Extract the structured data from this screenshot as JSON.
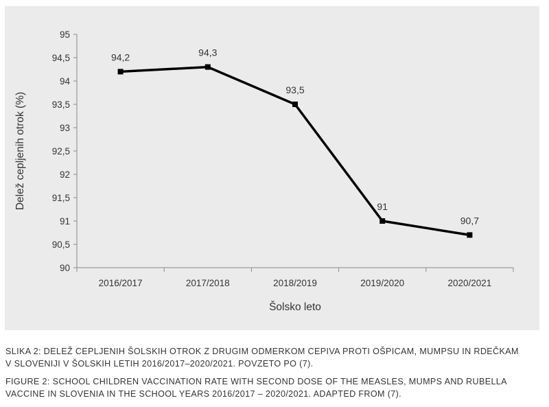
{
  "colors": {
    "panel_background": "#ebebeb",
    "line": "#000000",
    "axis": "#8a8a8a",
    "text": "#333333"
  },
  "chart_data": {
    "type": "line",
    "title": "",
    "xlabel": "Šolsko leto",
    "ylabel": "Delež cepljenih otrok (%)",
    "categories": [
      "2016/2017",
      "2017/2018",
      "2018/2019",
      "2019/2020",
      "2020/2021"
    ],
    "values": [
      94.2,
      94.3,
      93.5,
      91.0,
      90.7
    ],
    "data_labels": [
      "94,2",
      "94,3",
      "93,5",
      "91",
      "90,7"
    ],
    "ylim": [
      90,
      95
    ],
    "yticks": [
      "90",
      "90,5",
      "91",
      "91,5",
      "92",
      "92,5",
      "93",
      "93,5",
      "94",
      "94,5",
      "95"
    ],
    "grid": false,
    "legend": "none",
    "marker": "square"
  },
  "caption": {
    "slovenian": [
      "SLIKA 2: DELEŽ CEPLJENIH ŠOLSKIH OTROK Z DRUGIM ODMERKOM CEPIVA PROTI OŠPICAM, MUMPSU IN RDEČKAM",
      "V SLOVENIJI V ŠOLSKIH LETIH 2016/2017–2020/2021. POVZETO PO (7)."
    ],
    "english": [
      "FIGURE 2: SCHOOL CHILDREN VACCINATION RATE WITH SECOND DOSE OF THE MEASLES, MUMPS AND RUBELLA",
      "VACCINE IN SLOVENIA IN THE SCHOOL YEARS 2016/2017 – 2020/2021. ADAPTED FROM (7)."
    ]
  }
}
